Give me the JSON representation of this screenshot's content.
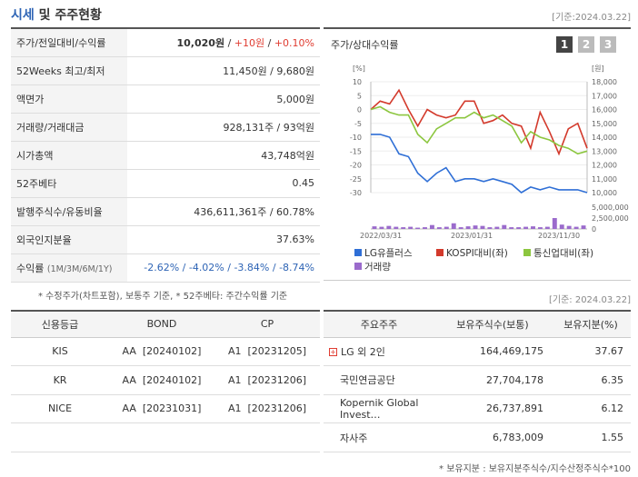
{
  "header": {
    "title_a": "시세",
    "title_b": " 및 주주현황",
    "date": "[기준:2024.03.22]"
  },
  "quote": [
    {
      "label": "주가/전일대비/수익률",
      "v": "10,020원",
      "v2": "+10원",
      "v3": "+0.10%"
    },
    {
      "label": "52Weeks 최고/최저",
      "v": "11,450원 / 9,680원"
    },
    {
      "label": "액면가",
      "v": "5,000원"
    },
    {
      "label": "거래량/거래대금",
      "v": "928,131주 / 93억원"
    },
    {
      "label": "시가총액",
      "v": "43,748억원"
    },
    {
      "label": "52주베타",
      "v": "0.45"
    },
    {
      "label": "발행주식수/유동비율",
      "v": "436,611,361주 / 60.78%"
    },
    {
      "label": "외국인지분율",
      "v": "37.63%"
    },
    {
      "label": "수익률",
      "sub": "(1M/3M/6M/1Y)",
      "v": "-2.62% / -4.02% / -3.84% / -8.74%"
    }
  ],
  "note1": "* 수정주가(차트포함), 보통주 기준, * 52주베타: 주간수익률 기준",
  "chart": {
    "title": "주가/상대수익률",
    "tabs": [
      "1",
      "2",
      "3"
    ]
  },
  "chart_data": {
    "type": "line",
    "left_axis_unit": "[%]",
    "right_axis_unit": "[원]",
    "left_ticks": [
      "10",
      "5",
      "0",
      "-5",
      "-10",
      "-15",
      "-20",
      "-25",
      "-30"
    ],
    "right_ticks": [
      "18,000",
      "17,000",
      "16,000",
      "15,000",
      "14,000",
      "13,000",
      "12,000",
      "11,000",
      "10,000"
    ],
    "vol_ticks": [
      "5,000,000",
      "2,500,000",
      "0"
    ],
    "x_ticks": [
      "2022/03/31",
      "2023/01/31",
      "2023/11/30"
    ],
    "ylim": [
      -30,
      10
    ],
    "series": [
      {
        "name": "LG유플러스",
        "color": "#2f6fd6",
        "values": [
          -9,
          -9,
          -10,
          -16,
          -17,
          -23,
          -26,
          -23,
          -21,
          -26,
          -25,
          -25,
          -26,
          -25,
          -26,
          -27,
          -30,
          -28,
          -29,
          -28,
          -29,
          -29,
          -29,
          -30
        ]
      },
      {
        "name": "KOSPI대비(좌)",
        "color": "#d33a2c",
        "values": [
          0,
          3,
          2,
          7,
          0,
          -6,
          0,
          -2,
          -3,
          -2,
          3,
          3,
          -5,
          -4,
          -2,
          -5,
          -6,
          -14,
          -1,
          -8,
          -16,
          -7,
          -5,
          -14
        ]
      },
      {
        "name": "통신업대비(좌)",
        "color": "#8cc63f",
        "values": [
          0,
          1,
          -1,
          -2,
          -2,
          -9,
          -12,
          -7,
          -5,
          -3,
          -3,
          -1,
          -3,
          -2,
          -4,
          -6,
          -12,
          -8,
          -10,
          -11,
          -13,
          -14,
          -16,
          -15
        ]
      }
    ],
    "volume": {
      "name": "거래량",
      "color": "#9b6bcc",
      "values": [
        0.6,
        0.5,
        0.7,
        0.5,
        0.4,
        0.5,
        0.3,
        0.4,
        0.9,
        0.4,
        0.5,
        1.3,
        0.4,
        0.6,
        0.8,
        0.7,
        0.4,
        0.5,
        0.9,
        0.4,
        0.4,
        0.5,
        0.6,
        0.4,
        0.5,
        2.5,
        1.0,
        0.7,
        0.5,
        0.8
      ]
    }
  },
  "date2": "[기준: 2024.03.22]",
  "credit": {
    "headers": [
      "신용등급",
      "BOND",
      "CP"
    ],
    "rows": [
      [
        "KIS",
        "AA  [20240102]",
        "A1  [20231205]"
      ],
      [
        "KR",
        "AA  [20240102]",
        "A1  [20231206]"
      ],
      [
        "NICE",
        "AA  [20231031]",
        "A1  [20231206]"
      ],
      [
        "",
        "",
        ""
      ]
    ]
  },
  "holders": {
    "headers": [
      "주요주주",
      "보유주식수(보통)",
      "보유지분(%)"
    ],
    "rows": [
      [
        "LG 외 2인",
        "164,469,175",
        "37.67"
      ],
      [
        "국민연금공단",
        "27,704,178",
        "6.35"
      ],
      [
        "Kopernik Global Invest…",
        "26,737,891",
        "6.12"
      ],
      [
        "자사주",
        "6,783,009",
        "1.55"
      ]
    ]
  },
  "note2": "* 보유지분 : 보유지분주식수/지수산정주식수*100"
}
